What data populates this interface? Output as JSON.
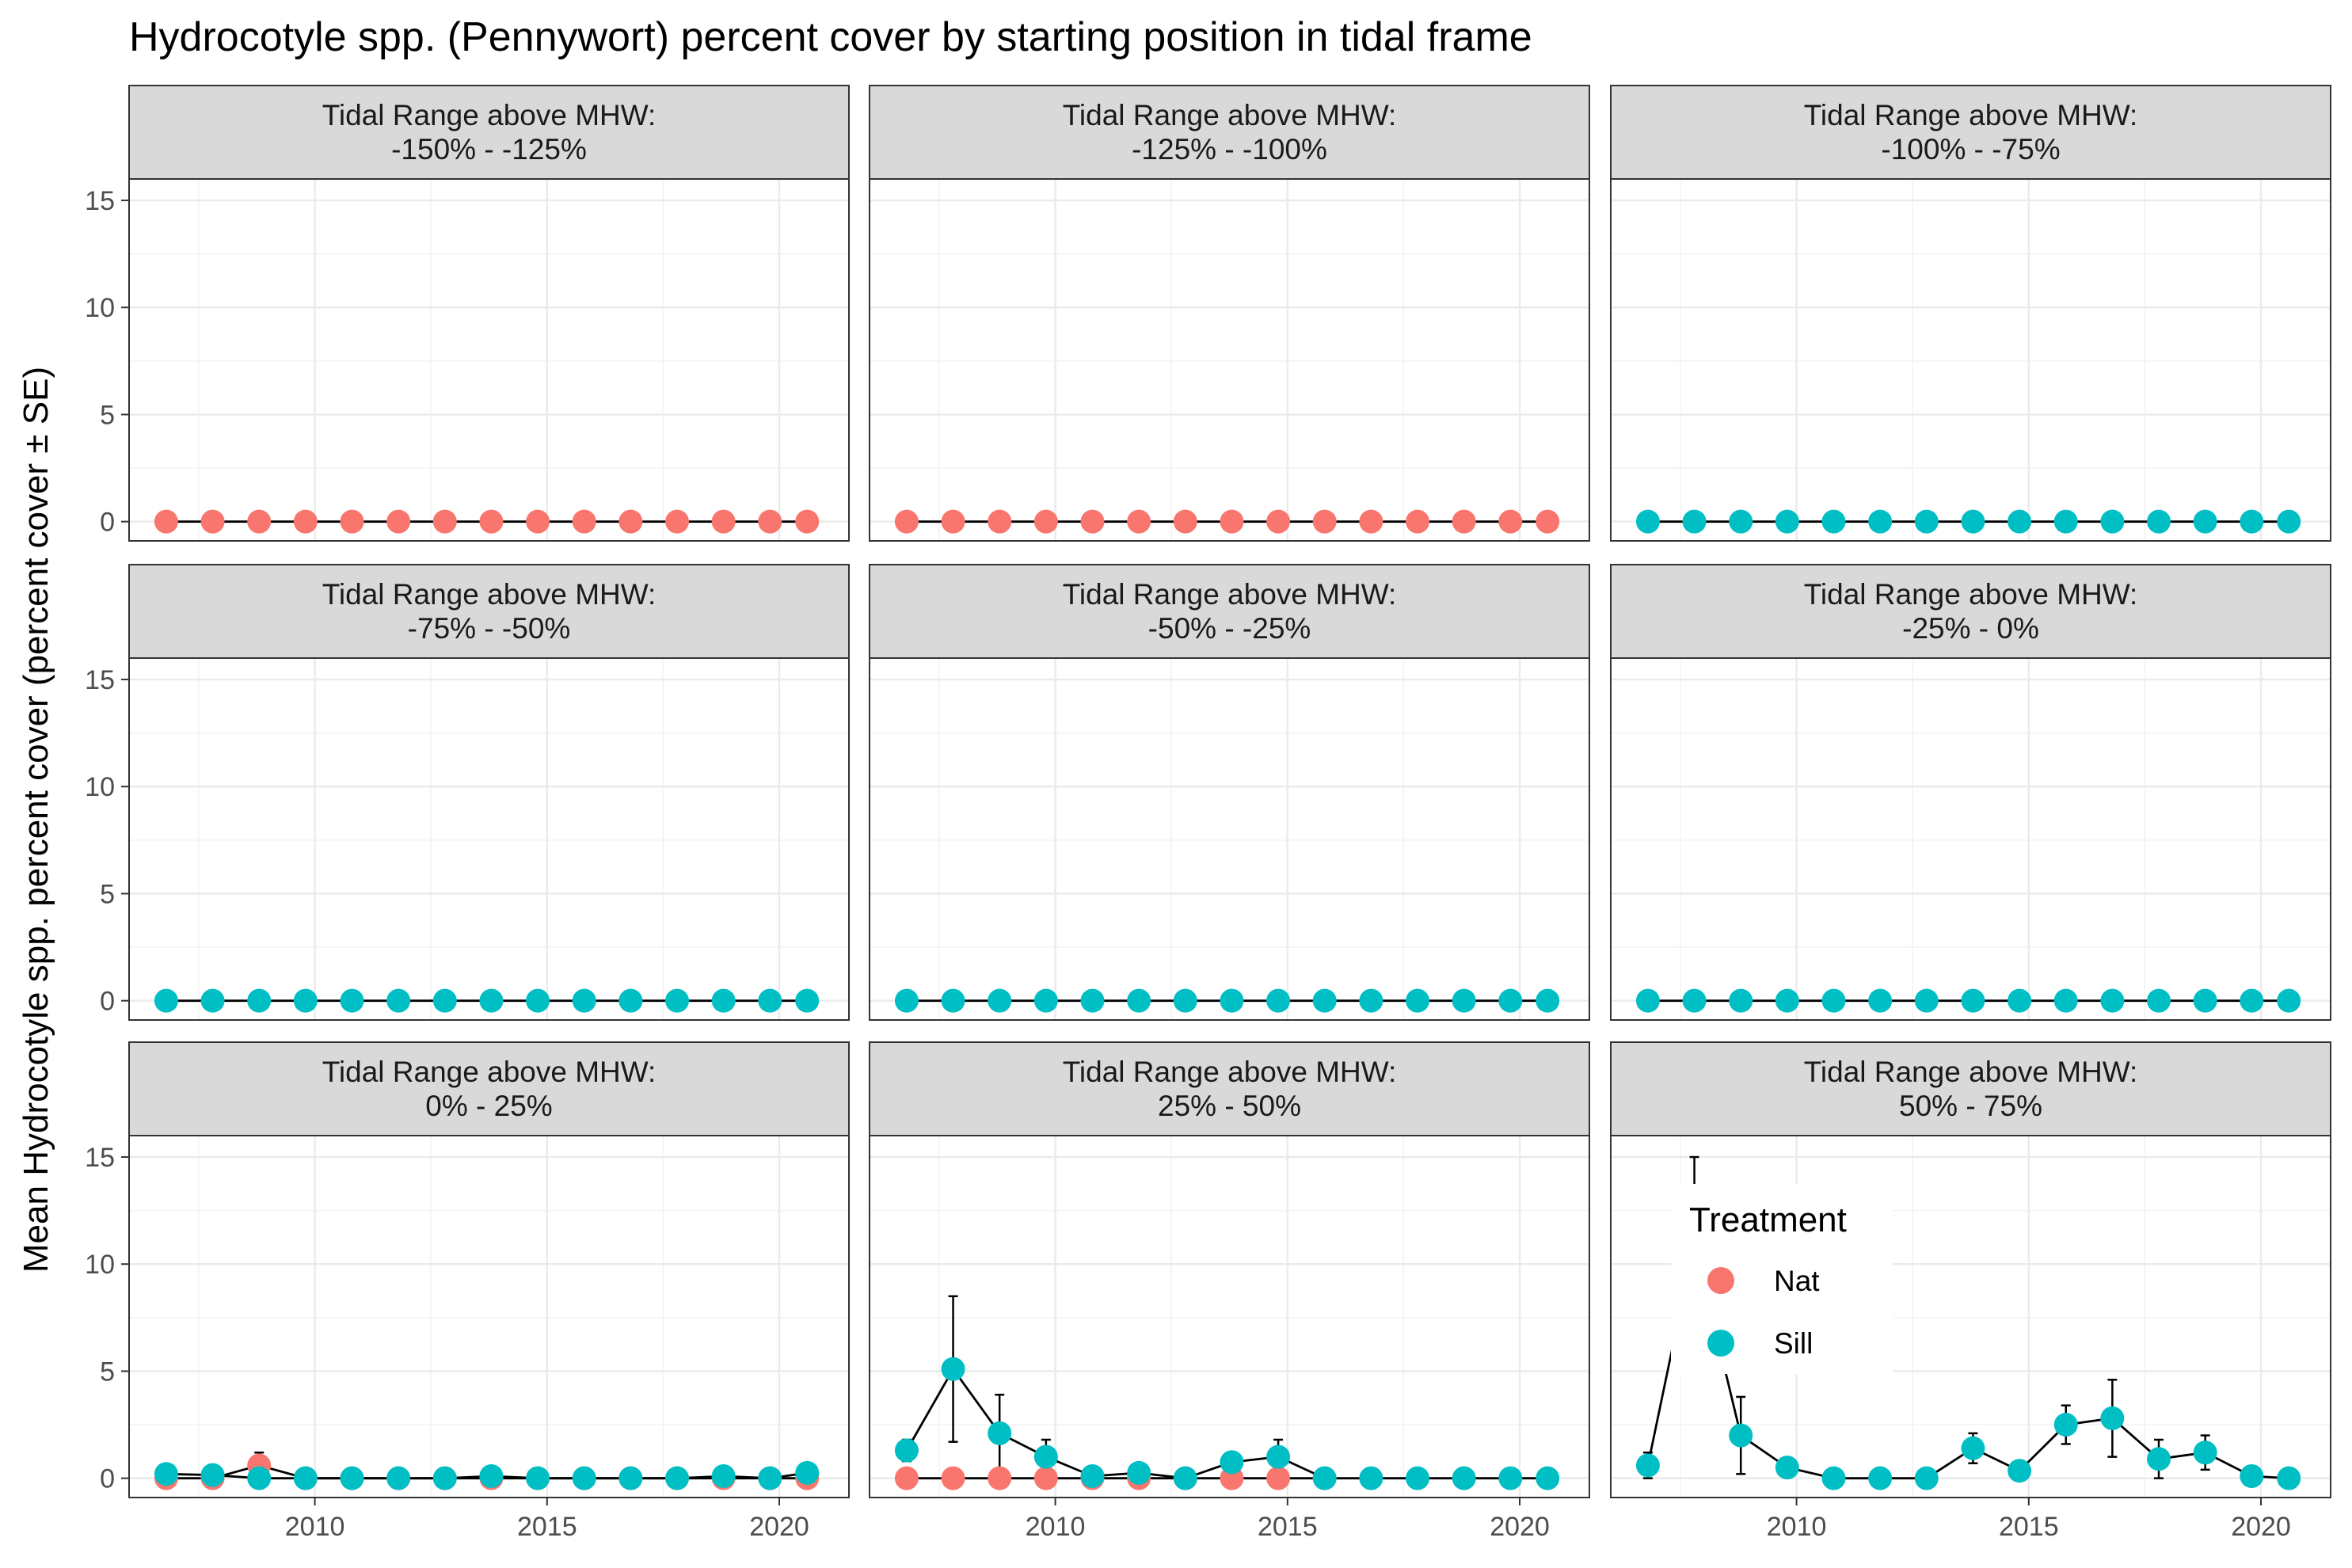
{
  "chart_data": {
    "type": "line",
    "title": "Hydrocotyle spp. (Pennywort) percent cover by starting position in tidal frame",
    "ylabel": "Mean Hydrocotyle spp. percent cover (percent cover ± SE)",
    "xlabel": "",
    "xlim": [
      2006.0,
      2021.5
    ],
    "ylim": [
      -0.9,
      16.0
    ],
    "x_ticks": [
      2010,
      2015,
      2020
    ],
    "x_tick_labels": [
      "2010",
      "2015",
      "2020"
    ],
    "y_ticks": [
      0,
      5,
      10,
      15
    ],
    "y_tick_labels": [
      "0",
      "5",
      "10",
      "15"
    ],
    "grid": true,
    "legend": {
      "title": "Treatment",
      "placement": "inside bottom-right panel, top-left",
      "entries": [
        {
          "name": "Nat",
          "color": "#F8766D"
        },
        {
          "name": "Sill",
          "color": "#00BFC4"
        }
      ]
    },
    "strip_prefix": "Tidal Range above MHW:",
    "panels": [
      {
        "range": "-150%  -  -125%",
        "series": [
          {
            "name": "Nat",
            "x": [
              2006.8,
              2007.8,
              2008.8,
              2009.8,
              2010.8,
              2011.8,
              2012.8,
              2013.8,
              2014.8,
              2015.8,
              2016.8,
              2017.8,
              2018.8,
              2019.8,
              2020.6
            ],
            "y": [
              0,
              0,
              0,
              0,
              0,
              0,
              0,
              0,
              0,
              0,
              0,
              0,
              0,
              0,
              0
            ]
          }
        ]
      },
      {
        "range": "-125%  -  -100%",
        "series": [
          {
            "name": "Nat",
            "x": [
              2006.8,
              2007.8,
              2008.8,
              2009.8,
              2010.8,
              2011.8,
              2012.8,
              2013.8,
              2014.8,
              2015.8,
              2016.8,
              2017.8,
              2018.8,
              2019.8,
              2020.6
            ],
            "y": [
              0,
              0,
              0,
              0,
              0,
              0,
              0,
              0,
              0,
              0,
              0,
              0,
              0,
              0,
              0
            ]
          }
        ]
      },
      {
        "range": "-100%  -  -75%",
        "series": [
          {
            "name": "Sill",
            "x": [
              2006.8,
              2007.8,
              2008.8,
              2009.8,
              2010.8,
              2011.8,
              2012.8,
              2013.8,
              2014.8,
              2015.8,
              2016.8,
              2017.8,
              2018.8,
              2019.8,
              2020.6
            ],
            "y": [
              0,
              0,
              0,
              0,
              0,
              0,
              0,
              0,
              0,
              0,
              0,
              0,
              0,
              0,
              0
            ]
          }
        ]
      },
      {
        "range": "-75%  -  -50%",
        "series": [
          {
            "name": "Sill",
            "x": [
              2006.8,
              2007.8,
              2008.8,
              2009.8,
              2010.8,
              2011.8,
              2012.8,
              2013.8,
              2014.8,
              2015.8,
              2016.8,
              2017.8,
              2018.8,
              2019.8,
              2020.6
            ],
            "y": [
              0,
              0,
              0,
              0,
              0,
              0,
              0,
              0,
              0,
              0,
              0,
              0,
              0,
              0,
              0
            ]
          }
        ]
      },
      {
        "range": "-50%  -  -25%",
        "series": [
          {
            "name": "Sill",
            "x": [
              2006.8,
              2007.8,
              2008.8,
              2009.8,
              2010.8,
              2011.8,
              2012.8,
              2013.8,
              2014.8,
              2015.8,
              2016.8,
              2017.8,
              2018.8,
              2019.8,
              2020.6
            ],
            "y": [
              0,
              0,
              0,
              0,
              0,
              0,
              0,
              0,
              0,
              0,
              0,
              0,
              0,
              0,
              0
            ]
          }
        ]
      },
      {
        "range": "-25%  -  0%",
        "series": [
          {
            "name": "Sill",
            "x": [
              2006.8,
              2007.8,
              2008.8,
              2009.8,
              2010.8,
              2011.8,
              2012.8,
              2013.8,
              2014.8,
              2015.8,
              2016.8,
              2017.8,
              2018.8,
              2019.8,
              2020.6
            ],
            "y": [
              0,
              0,
              0,
              0,
              0,
              0,
              0,
              0,
              0,
              0,
              0,
              0,
              0,
              0,
              0
            ]
          }
        ]
      },
      {
        "range": "0%  -  25%",
        "series": [
          {
            "name": "Nat",
            "x": [
              2006.8,
              2007.8,
              2008.8,
              2009.8,
              2010.8,
              2011.8,
              2012.8,
              2013.8,
              2014.8,
              2015.8,
              2016.8,
              2017.8,
              2018.8,
              2019.8,
              2020.6
            ],
            "y": [
              0,
              0,
              0.6,
              0,
              0,
              0,
              0,
              0,
              0,
              0,
              0,
              0,
              0,
              0,
              0
            ],
            "se": [
              0,
              0,
              0.6,
              0,
              0,
              0,
              0,
              0,
              0,
              0,
              0,
              0,
              0,
              0,
              0
            ]
          },
          {
            "name": "Sill",
            "x": [
              2006.8,
              2007.8,
              2008.8,
              2009.8,
              2010.8,
              2011.8,
              2012.8,
              2013.8,
              2014.8,
              2015.8,
              2016.8,
              2017.8,
              2018.8,
              2019.8,
              2020.6
            ],
            "y": [
              0.2,
              0.15,
              0,
              0,
              0,
              0,
              0,
              0.1,
              0,
              0,
              0,
              0,
              0.1,
              0,
              0.25
            ]
          }
        ]
      },
      {
        "range": "25%  -  50%",
        "series": [
          {
            "name": "Nat",
            "x": [
              2006.8,
              2007.8,
              2008.8,
              2009.8,
              2010.8,
              2011.8,
              2012.8,
              2013.8,
              2014.8,
              2015.8
            ],
            "y": [
              0,
              0,
              0,
              0,
              0,
              0,
              0,
              0,
              0,
              0
            ]
          },
          {
            "name": "Sill",
            "x": [
              2006.8,
              2007.8,
              2008.8,
              2009.8,
              2010.8,
              2011.8,
              2012.8,
              2013.8,
              2014.8,
              2015.8,
              2016.8,
              2017.8,
              2018.8,
              2019.8,
              2020.6
            ],
            "y": [
              1.3,
              5.1,
              2.1,
              1.0,
              0.1,
              0.25,
              0,
              0.75,
              1.0,
              0,
              0,
              0,
              0,
              0,
              0
            ],
            "se": [
              0.5,
              3.4,
              1.8,
              0.8,
              0,
              0,
              0,
              0,
              0.8,
              0,
              0,
              0,
              0,
              0,
              0
            ]
          }
        ]
      },
      {
        "range": "50%  -  75%",
        "series": [
          {
            "name": "Sill",
            "x": [
              2006.8,
              2007.8,
              2008.8,
              2009.8,
              2010.8,
              2011.8,
              2012.8,
              2013.8,
              2014.8,
              2015.8,
              2016.8,
              2017.8,
              2018.8,
              2019.8,
              2020.6
            ],
            "y": [
              0.6,
              11.0,
              2.0,
              0.5,
              0,
              0,
              0,
              1.4,
              0.35,
              2.5,
              2.8,
              0.9,
              1.2,
              0.1,
              0
            ],
            "se": [
              0.6,
              4.0,
              1.8,
              0,
              0,
              0,
              0,
              0.7,
              0,
              0.9,
              1.8,
              0.9,
              0.8,
              0,
              0
            ]
          }
        ]
      }
    ]
  }
}
